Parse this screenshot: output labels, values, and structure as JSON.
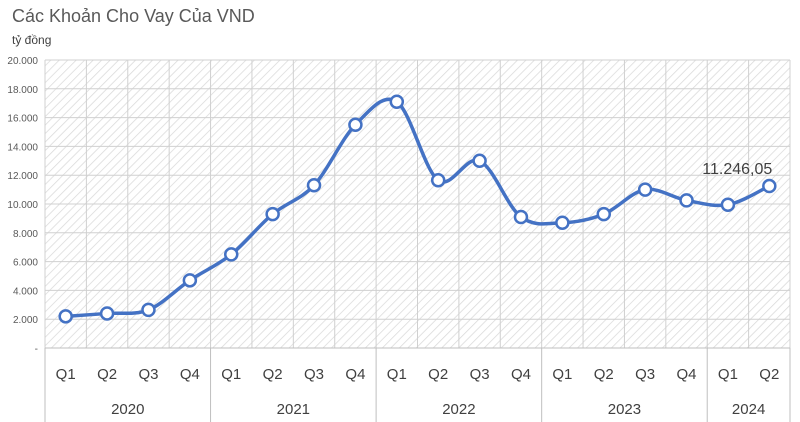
{
  "chart_data": {
    "type": "line",
    "title": "Các Khoản Cho Vay Của VND",
    "ylabel": "tỷ đồng",
    "ylim": [
      0,
      20000
    ],
    "yticks": [
      "-",
      "2.000",
      "4.000",
      "6.000",
      "8.000",
      "10.000",
      "12.000",
      "14.000",
      "16.000",
      "18.000",
      "20.000"
    ],
    "categories": [
      "Q1",
      "Q2",
      "Q3",
      "Q4",
      "Q1",
      "Q2",
      "Q3",
      "Q4",
      "Q1",
      "Q2",
      "Q3",
      "Q4",
      "Q1",
      "Q2",
      "Q3",
      "Q4",
      "Q1",
      "Q2"
    ],
    "years": [
      {
        "label": "2020",
        "count": 4
      },
      {
        "label": "2021",
        "count": 4
      },
      {
        "label": "2022",
        "count": 4
      },
      {
        "label": "2023",
        "count": 4
      },
      {
        "label": "2024",
        "count": 2
      }
    ],
    "series": [
      {
        "values": [
          2200,
          2400,
          2650,
          4700,
          6500,
          9300,
          11300,
          15500,
          17100,
          11650,
          13000,
          9100,
          8700,
          9300,
          11000,
          10250,
          9950,
          11246.05
        ]
      }
    ],
    "annotation": {
      "text": "11.246,05"
    },
    "line_color": "#4472c4",
    "grid": true,
    "legend": "none"
  }
}
